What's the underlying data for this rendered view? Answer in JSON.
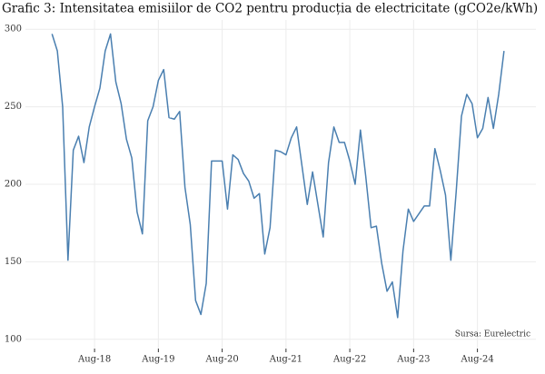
{
  "chart_data": {
    "type": "line",
    "title": "Grafic 3: Intensitatea emisiilor de CO2 pentru producția de electricitate (gCO2e/kWh)",
    "annotation": "Sursa: Eurelectric",
    "x": [
      "2017-12",
      "2018-01",
      "2018-02",
      "2018-03",
      "2018-04",
      "2018-05",
      "2018-06",
      "2018-07",
      "2018-08",
      "2018-09",
      "2018-10",
      "2018-11",
      "2018-12",
      "2019-01",
      "2019-02",
      "2019-03",
      "2019-04",
      "2019-05",
      "2019-06",
      "2019-07",
      "2019-08",
      "2019-09",
      "2019-10",
      "2019-11",
      "2019-12",
      "2020-01",
      "2020-02",
      "2020-03",
      "2020-04",
      "2020-05",
      "2020-06",
      "2020-07",
      "2020-08",
      "2020-09",
      "2020-10",
      "2020-11",
      "2020-12",
      "2021-01",
      "2021-02",
      "2021-03",
      "2021-04",
      "2021-05",
      "2021-06",
      "2021-07",
      "2021-08",
      "2021-09",
      "2021-10",
      "2021-11",
      "2021-12",
      "2022-01",
      "2022-02",
      "2022-03",
      "2022-04",
      "2022-05",
      "2022-06",
      "2022-07",
      "2022-08",
      "2022-09",
      "2022-10",
      "2022-11",
      "2022-12",
      "2023-01",
      "2023-02",
      "2023-03",
      "2023-04",
      "2023-05",
      "2023-06",
      "2023-07",
      "2023-08",
      "2023-09",
      "2023-10",
      "2023-11",
      "2023-12",
      "2024-01",
      "2024-02",
      "2024-03",
      "2024-04",
      "2024-05",
      "2024-06",
      "2024-07",
      "2024-08",
      "2024-09",
      "2024-10",
      "2024-11",
      "2024-12",
      "2025-01"
    ],
    "series": [
      {
        "name": "gCO2e/kWh",
        "color": "#4a7fb0",
        "values": [
          297,
          286,
          250,
          151,
          222,
          231,
          214,
          237,
          250,
          262,
          286,
          297,
          266,
          252,
          229,
          217,
          182,
          168,
          241,
          250,
          267,
          274,
          243,
          242,
          247,
          198,
          174,
          125,
          116,
          136,
          215,
          215,
          215,
          184,
          219,
          216,
          207,
          202,
          191,
          194,
          155,
          172,
          222,
          221,
          219,
          230,
          237,
          212,
          187,
          208,
          187,
          166,
          214,
          237,
          227,
          227,
          215,
          200,
          235,
          205,
          172,
          173,
          149,
          131,
          137,
          114,
          157,
          184,
          176,
          181,
          186,
          186,
          223,
          209,
          193,
          151,
          195,
          244,
          258,
          252,
          230,
          236,
          256,
          236,
          258,
          286
        ]
      }
    ],
    "xlim": [
      "2017-07",
      "2025-07"
    ],
    "xticks": [
      {
        "value": "2018-08",
        "label": "Aug-18"
      },
      {
        "value": "2019-08",
        "label": "Aug-19"
      },
      {
        "value": "2020-08",
        "label": "Aug-20"
      },
      {
        "value": "2021-08",
        "label": "Aug-21"
      },
      {
        "value": "2022-08",
        "label": "Aug-22"
      },
      {
        "value": "2023-08",
        "label": "Aug-23"
      },
      {
        "value": "2024-08",
        "label": "Aug-24"
      }
    ],
    "ylim": [
      94,
      306
    ],
    "yticks": [
      100,
      150,
      200,
      250,
      300
    ],
    "grid": true
  }
}
